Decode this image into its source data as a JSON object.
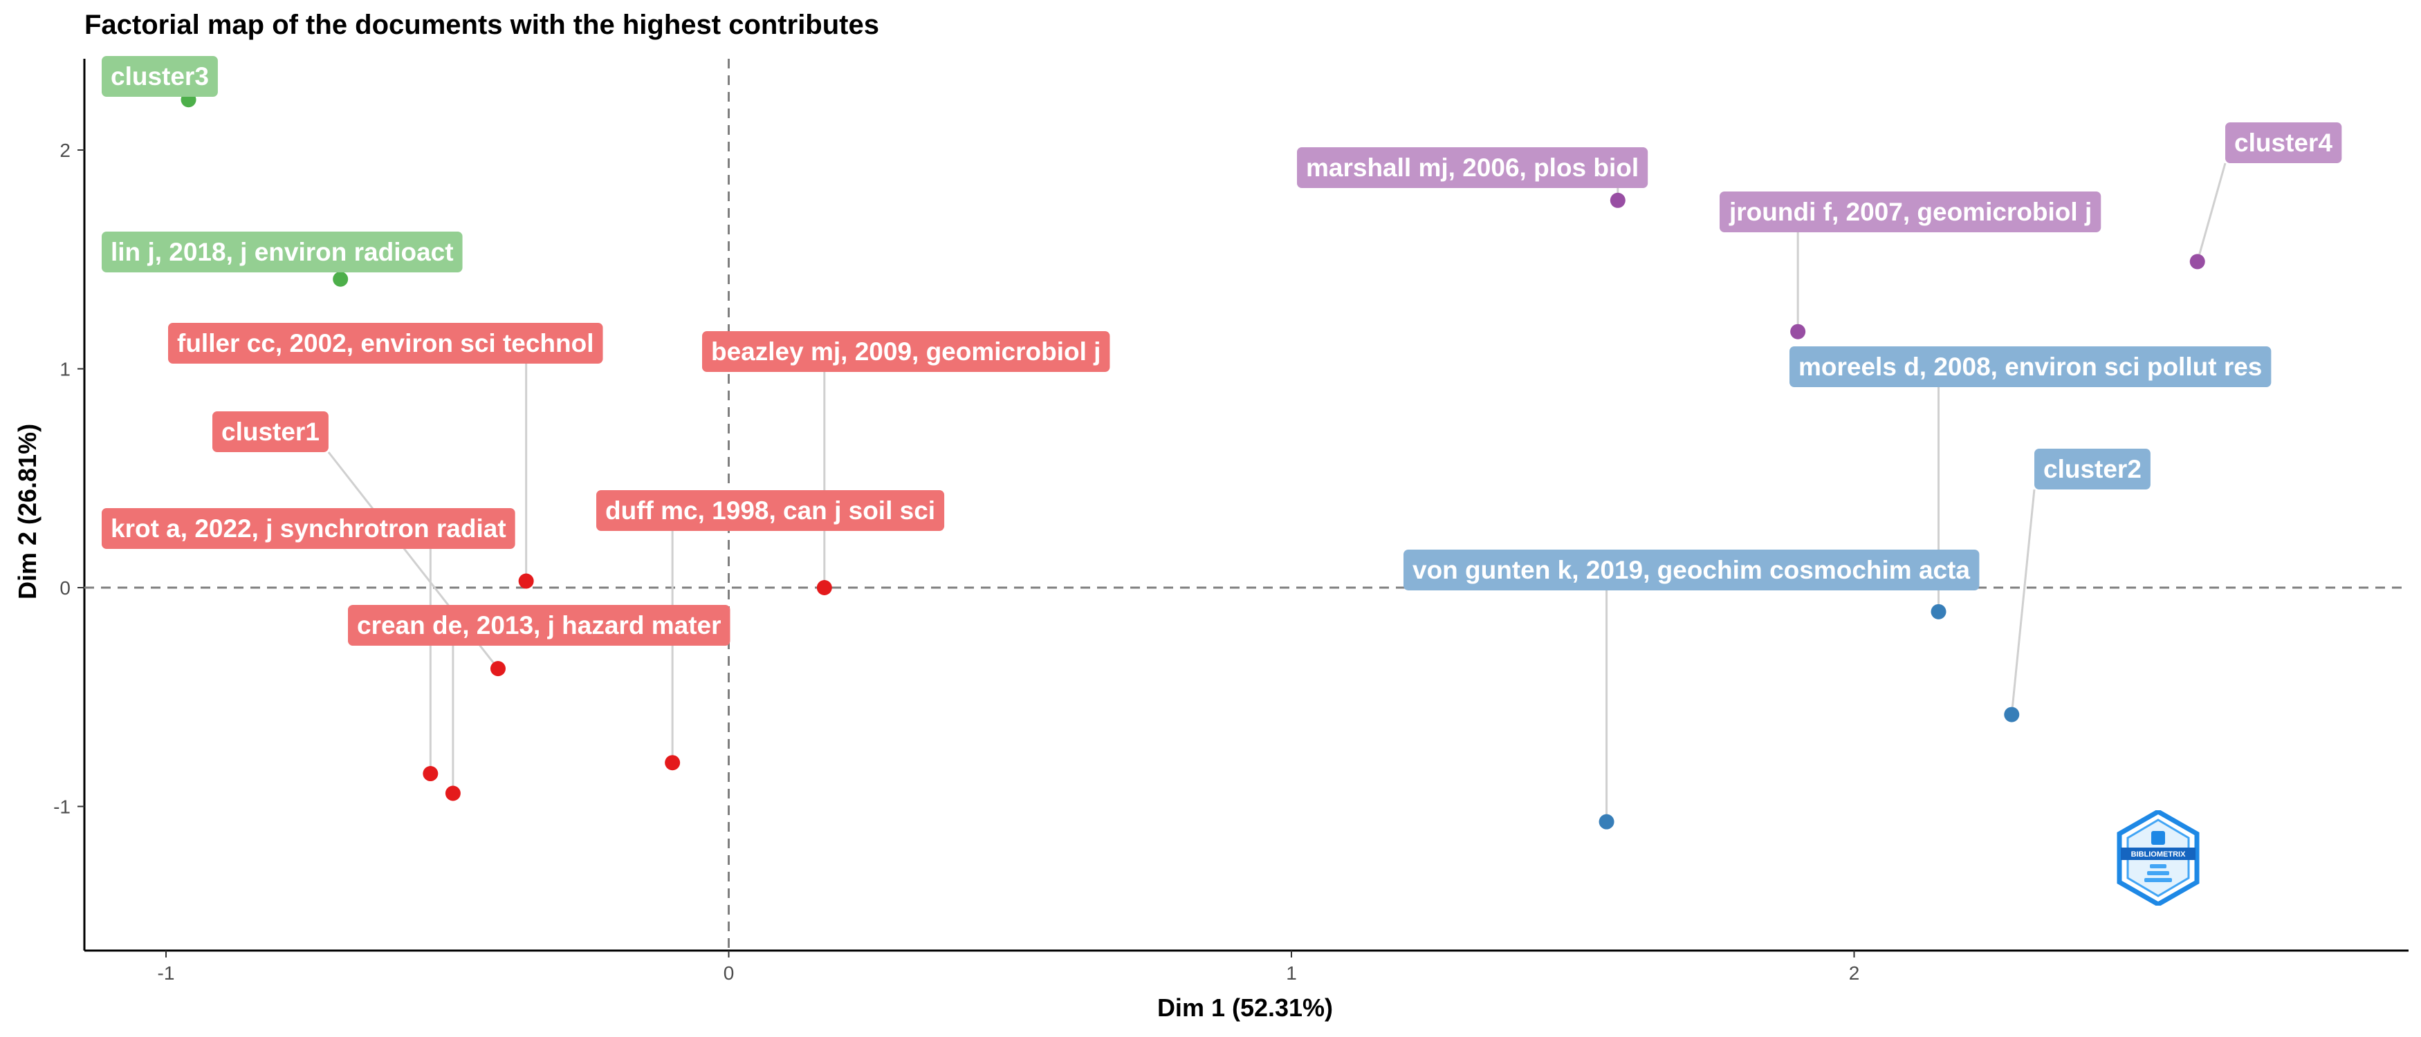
{
  "chart_data": {
    "type": "scatter",
    "title": "Factorial map of the documents with the highest contributes",
    "xlabel": "Dim 1 (52.31%)",
    "ylabel": "Dim 2 (26.81%)",
    "xlim": [
      -1.15,
      2.95
    ],
    "ylim": [
      -1.65,
      2.42
    ],
    "xticks": [
      -1,
      0,
      1,
      2
    ],
    "yticks": [
      -1,
      0,
      1,
      2
    ],
    "grid": false,
    "reference_lines": {
      "x": 0,
      "y": 0
    },
    "clusters": [
      {
        "id": "cluster1",
        "color": "#e41a1c",
        "label_bg": "#ef7273"
      },
      {
        "id": "cluster2",
        "color": "#377eb8",
        "label_bg": "#88b2d6"
      },
      {
        "id": "cluster3",
        "color": "#4daf4a",
        "label_bg": "#94cf92"
      },
      {
        "id": "cluster4",
        "color": "#984ea3",
        "label_bg": "#c194c8"
      }
    ],
    "points": [
      {
        "label": "cluster3",
        "cluster": 2,
        "x": -0.96,
        "y": 2.23
      },
      {
        "label": "lin j, 2018, j environ radioact",
        "cluster": 2,
        "x": -0.69,
        "y": 1.41
      },
      {
        "label": "fuller cc, 2002, environ sci technol",
        "cluster": 0,
        "x": -0.36,
        "y": 0.03
      },
      {
        "label": "cluster1",
        "cluster": 0,
        "x": -0.41,
        "y": -0.37
      },
      {
        "label": "krot a, 2022, j synchrotron radiat",
        "cluster": 0,
        "x": -0.53,
        "y": -0.85
      },
      {
        "label": "crean de, 2013, j hazard mater",
        "cluster": 0,
        "x": -0.49,
        "y": -0.94
      },
      {
        "label": "duff mc, 1998, can j soil sci",
        "cluster": 0,
        "x": -0.1,
        "y": -0.8
      },
      {
        "label": "beazley mj, 2009, geomicrobiol j",
        "cluster": 0,
        "x": 0.17,
        "y": 0.0
      },
      {
        "label": "marshall mj, 2006, plos biol",
        "cluster": 3,
        "x": 1.58,
        "y": 1.77
      },
      {
        "label": "jroundi f, 2007, geomicrobiol j",
        "cluster": 3,
        "x": 1.9,
        "y": 1.17
      },
      {
        "label": "cluster4",
        "cluster": 3,
        "x": 2.61,
        "y": 1.49
      },
      {
        "label": "moreels d, 2008, environ sci pollut res",
        "cluster": 1,
        "x": 2.15,
        "y": -0.11
      },
      {
        "label": "cluster2",
        "cluster": 1,
        "x": 2.28,
        "y": -0.58
      },
      {
        "label": "von gunten k, 2019, geochim cosmochim acta",
        "cluster": 1,
        "x": 1.56,
        "y": -1.07
      }
    ]
  },
  "logo": {
    "text": "BIBLIOMETRIX",
    "color": "#1e88e5"
  }
}
